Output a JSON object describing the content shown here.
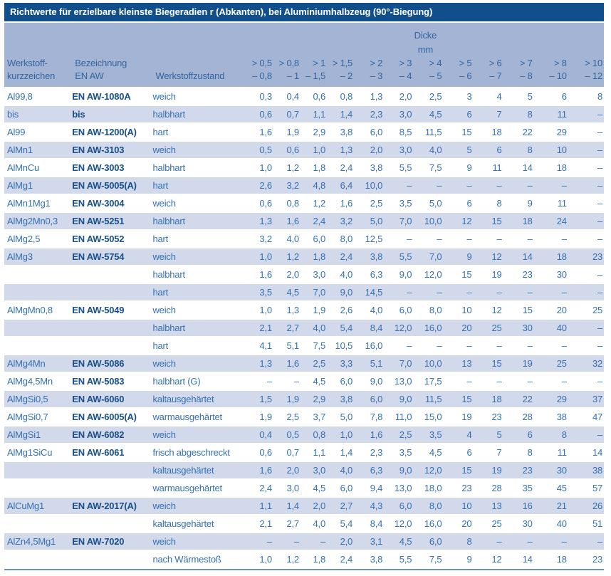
{
  "title": "Richtwerte für erzielbare kleinste Biegeradien r (Abkanten), bei Aluminiumhalbzeug (90°-Biegung)",
  "header": {
    "dicke_label": "Dicke",
    "dicke_unit": "mm",
    "col_material_line1": "Werkstoff-",
    "col_material_line2": "kurzzeichen",
    "col_designation_line1": "Bezeichnung",
    "col_designation_line2": "EN AW",
    "col_condition": "Werkstoffzustand",
    "thickness_ranges": [
      {
        "from": "> 0,5",
        "to": "– 0,8"
      },
      {
        "from": "> 0,8",
        "to": "– 1"
      },
      {
        "from": "> 1",
        "to": "– 1,5"
      },
      {
        "from": "> 1,5",
        "to": "– 2"
      },
      {
        "from": "> 2",
        "to": "– 3"
      },
      {
        "from": "> 3",
        "to": "– 4"
      },
      {
        "from": "> 4",
        "to": "– 5"
      },
      {
        "from": "> 5",
        "to": "– 6"
      },
      {
        "from": "> 6",
        "to": "– 7"
      },
      {
        "from": "> 7",
        "to": "– 8"
      },
      {
        "from": "> 8",
        "to": "– 10"
      },
      {
        "from": "> 10",
        "to": "– 12"
      }
    ]
  },
  "rows": [
    {
      "code": "Al99,8",
      "en_aw": "EN AW-1080A",
      "condition": "weich",
      "values": [
        "0,3",
        "0,4",
        "0,6",
        "0,8",
        "1,3",
        "2,0",
        "2,5",
        "3",
        "4",
        "5",
        "6",
        "8"
      ]
    },
    {
      "code": "bis",
      "en_aw": "bis",
      "condition": "halbhart",
      "values": [
        "0,6",
        "0,7",
        "1,1",
        "1,4",
        "2,3",
        "3,0",
        "4,5",
        "6",
        "7",
        "8",
        "11",
        "–"
      ]
    },
    {
      "code": "Al99",
      "en_aw": "EN AW-1200(A)",
      "condition": "hart",
      "values": [
        "1,6",
        "1,9",
        "2,9",
        "3,8",
        "6,0",
        "8,5",
        "11,5",
        "15",
        "18",
        "22",
        "29",
        "–"
      ]
    },
    {
      "code": "AlMn1",
      "en_aw": "EN AW-3103",
      "condition": "weich",
      "values": [
        "0,5",
        "0,6",
        "1,0",
        "1,3",
        "2,0",
        "3,0",
        "4,0",
        "5",
        "6",
        "8",
        "10",
        "–"
      ]
    },
    {
      "code": "AlMnCu",
      "en_aw": "EN AW-3003",
      "condition": "halbhart",
      "values": [
        "1,0",
        "1,2",
        "1,8",
        "2,4",
        "3,8",
        "5,5",
        "7,5",
        "9",
        "11",
        "14",
        "18",
        "–"
      ]
    },
    {
      "code": "AlMg1",
      "en_aw": "EN AW-5005(A)",
      "condition": "hart",
      "values": [
        "2,6",
        "3,2",
        "4,8",
        "6,4",
        "10,0",
        "–",
        "–",
        "–",
        "–",
        "–",
        "–",
        "–"
      ]
    },
    {
      "code": "AlMn1Mg1",
      "en_aw": "EN AW-3004",
      "condition": "weich",
      "values": [
        "0,6",
        "0,8",
        "1,2",
        "1,6",
        "2,5",
        "3,5",
        "5,0",
        "6",
        "8",
        "9",
        "11",
        "–"
      ]
    },
    {
      "code": "AlMg2Mn0,3",
      "en_aw": "EN AW-5251",
      "condition": "halbhart",
      "values": [
        "1,3",
        "1,6",
        "2,4",
        "3,2",
        "5,0",
        "7,0",
        "10,0",
        "12",
        "15",
        "18",
        "24",
        "–"
      ]
    },
    {
      "code": "AlMg2,5",
      "en_aw": "EN AW-5052",
      "condition": "hart",
      "values": [
        "3,2",
        "4,0",
        "6,0",
        "8,0",
        "12,5",
        "–",
        "–",
        "–",
        "–",
        "–",
        "–",
        "–"
      ]
    },
    {
      "code": "AlMg3",
      "en_aw": "EN AW-5754",
      "condition": "weich",
      "values": [
        "1,0",
        "1,2",
        "1,8",
        "2,4",
        "3,8",
        "5,5",
        "7,0",
        "9",
        "12",
        "14",
        "18",
        "23"
      ]
    },
    {
      "code": "",
      "en_aw": "",
      "condition": "halbhart",
      "values": [
        "1,6",
        "2,0",
        "3,0",
        "4,0",
        "6,3",
        "9,0",
        "12,0",
        "15",
        "19",
        "23",
        "30",
        "–"
      ]
    },
    {
      "code": "",
      "en_aw": "",
      "condition": "hart",
      "values": [
        "3,5",
        "4,5",
        "7,0",
        "9,0",
        "14,5",
        "–",
        "–",
        "–",
        "–",
        "–",
        "–",
        "–"
      ]
    },
    {
      "code": "AlMgMn0,8",
      "en_aw": "EN AW-5049",
      "condition": "weich",
      "values": [
        "1,0",
        "1,3",
        "1,9",
        "2,6",
        "4,0",
        "6,0",
        "8,0",
        "10",
        "12",
        "15",
        "20",
        "25"
      ]
    },
    {
      "code": "",
      "en_aw": "",
      "condition": "halbhart",
      "values": [
        "2,1",
        "2,7",
        "4,0",
        "5,4",
        "8,4",
        "12,0",
        "16,0",
        "20",
        "25",
        "30",
        "40",
        "–"
      ]
    },
    {
      "code": "",
      "en_aw": "",
      "condition": "hart",
      "values": [
        "4,1",
        "5,1",
        "7,5",
        "10,5",
        "16,0",
        "–",
        "–",
        "–",
        "–",
        "–",
        "–",
        "–"
      ]
    },
    {
      "code": "AlMg4Mn",
      "en_aw": "EN AW-5086",
      "condition": "weich",
      "values": [
        "1,3",
        "1,6",
        "2,5",
        "3,3",
        "5,1",
        "7,0",
        "10,0",
        "13",
        "15",
        "19",
        "25",
        "32"
      ]
    },
    {
      "code": "AlMg4,5Mn",
      "en_aw": "EN AW-5083",
      "condition": "halbhart (G)",
      "values": [
        "–",
        "–",
        "4,5",
        "6,0",
        "9,0",
        "13,0",
        "17,5",
        "–",
        "–",
        "–",
        "–",
        "–"
      ]
    },
    {
      "code": "AlMgSi0,5",
      "en_aw": "EN AW-6060",
      "condition": "kaltausgehärtet",
      "values": [
        "1,5",
        "1,9",
        "2,9",
        "3,8",
        "6,0",
        "9,0",
        "11,5",
        "15",
        "18",
        "22",
        "29",
        "37"
      ]
    },
    {
      "code": "AlMgSi0,7",
      "en_aw": "EN AW-6005(A)",
      "condition": "warmausgehärtet",
      "values": [
        "1,9",
        "2,5",
        "3,7",
        "5,0",
        "7,8",
        "11,0",
        "15,0",
        "19",
        "23",
        "28",
        "38",
        "47"
      ]
    },
    {
      "code": "AlMgSi1",
      "en_aw": "EN AW-6082",
      "condition": "weich",
      "values": [
        "0,4",
        "0,5",
        "0,8",
        "1,0",
        "1,6",
        "2,5",
        "3,5",
        "4",
        "5",
        "6",
        "8",
        "–"
      ]
    },
    {
      "code": "AlMg1SiCu",
      "en_aw": "EN AW-6061",
      "condition": "frisch abgeschreckt",
      "values": [
        "0,6",
        "0,7",
        "1,1",
        "1,4",
        "2,3",
        "3,5",
        "4,5",
        "6",
        "7",
        "8",
        "11",
        "14"
      ]
    },
    {
      "code": "",
      "en_aw": "",
      "condition": "kaltausgehärtet",
      "values": [
        "1,6",
        "2,0",
        "3,0",
        "4,0",
        "6,3",
        "9,0",
        "12,0",
        "15",
        "19",
        "23",
        "30",
        "38"
      ]
    },
    {
      "code": "",
      "en_aw": "",
      "condition": "warmausgehärtet",
      "values": [
        "2,4",
        "3,0",
        "4,5",
        "6,0",
        "9,4",
        "13,0",
        "18,0",
        "23",
        "28",
        "35",
        "45",
        "57"
      ]
    },
    {
      "code": "AlCuMg1",
      "en_aw": "EN AW-2017(A)",
      "condition": "weich",
      "values": [
        "1,1",
        "1,4",
        "2,0",
        "2,7",
        "4,3",
        "6,0",
        "8,0",
        "10",
        "13",
        "16",
        "21",
        "26"
      ]
    },
    {
      "code": "",
      "en_aw": "",
      "condition": "kaltausgehärtet",
      "values": [
        "2,1",
        "2,7",
        "4,0",
        "5,4",
        "8,4",
        "12,0",
        "16,0",
        "20",
        "25",
        "30",
        "40",
        "51"
      ]
    },
    {
      "code": "AlZn4,5Mg1",
      "en_aw": "EN AW-7020",
      "condition": "weich",
      "values": [
        "–",
        "–",
        "–",
        "2,0",
        "3,1",
        "4,5",
        "6,0",
        "8",
        "–",
        "–",
        "–",
        "–"
      ]
    },
    {
      "code": "",
      "en_aw": "",
      "condition": "nach Wärmestoß",
      "values": [
        "1,0",
        "1,2",
        "1,8",
        "2,4",
        "3,8",
        "5,5",
        "7,5",
        "9",
        "12",
        "14",
        "18",
        "23"
      ]
    }
  ],
  "colors": {
    "title_bar": "#114f8c",
    "header_bg": "#a4b4d5",
    "stripe_bg": "#d2d9ea",
    "text_blue": "#3470b5",
    "text_navy": "#164f8c",
    "bottom_rule": "#6c8fc0"
  }
}
